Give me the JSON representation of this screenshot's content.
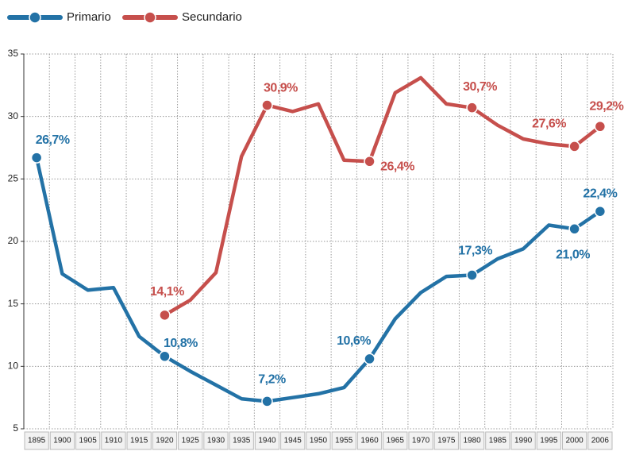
{
  "chart_data": {
    "type": "line",
    "categories": [
      "1895",
      "1900",
      "1905",
      "1910",
      "1915",
      "1920",
      "1925",
      "1930",
      "1935",
      "1940",
      "1945",
      "1950",
      "1955",
      "1960",
      "1965",
      "1970",
      "1975",
      "1980",
      "1985",
      "1990",
      "1995",
      "2000",
      "2006"
    ],
    "series": [
      {
        "name": "Primario",
        "color": "#2372a6",
        "values": [
          26.7,
          17.4,
          16.1,
          16.3,
          12.4,
          10.8,
          9.6,
          8.5,
          7.4,
          7.2,
          7.5,
          7.8,
          8.3,
          10.6,
          13.8,
          15.9,
          17.2,
          17.3,
          18.6,
          19.4,
          21.3,
          21.0,
          22.4
        ],
        "value_labels": [
          "26,7%",
          null,
          null,
          null,
          null,
          "10,8%",
          null,
          null,
          null,
          "7,2%",
          null,
          null,
          null,
          "10,6%",
          null,
          null,
          null,
          "17,3%",
          null,
          null,
          null,
          "21,0%",
          "22,4%"
        ]
      },
      {
        "name": "Secundario",
        "color": "#c64f4c",
        "values": [
          null,
          null,
          null,
          null,
          null,
          14.1,
          15.3,
          17.5,
          26.8,
          30.9,
          30.4,
          31.0,
          26.5,
          26.4,
          31.9,
          33.1,
          31.0,
          30.7,
          29.3,
          28.2,
          27.8,
          27.6,
          29.2
        ],
        "value_labels": [
          null,
          null,
          null,
          null,
          null,
          "14,1%",
          null,
          null,
          null,
          "30,9%",
          null,
          null,
          null,
          "26,4%",
          null,
          null,
          null,
          "30,7%",
          null,
          null,
          null,
          "27,6%",
          "29,2%"
        ]
      }
    ],
    "ylim": [
      5,
      35
    ],
    "yticks": [
      5,
      10,
      15,
      20,
      25,
      30,
      35
    ],
    "grid": true,
    "legend": "top-left"
  }
}
